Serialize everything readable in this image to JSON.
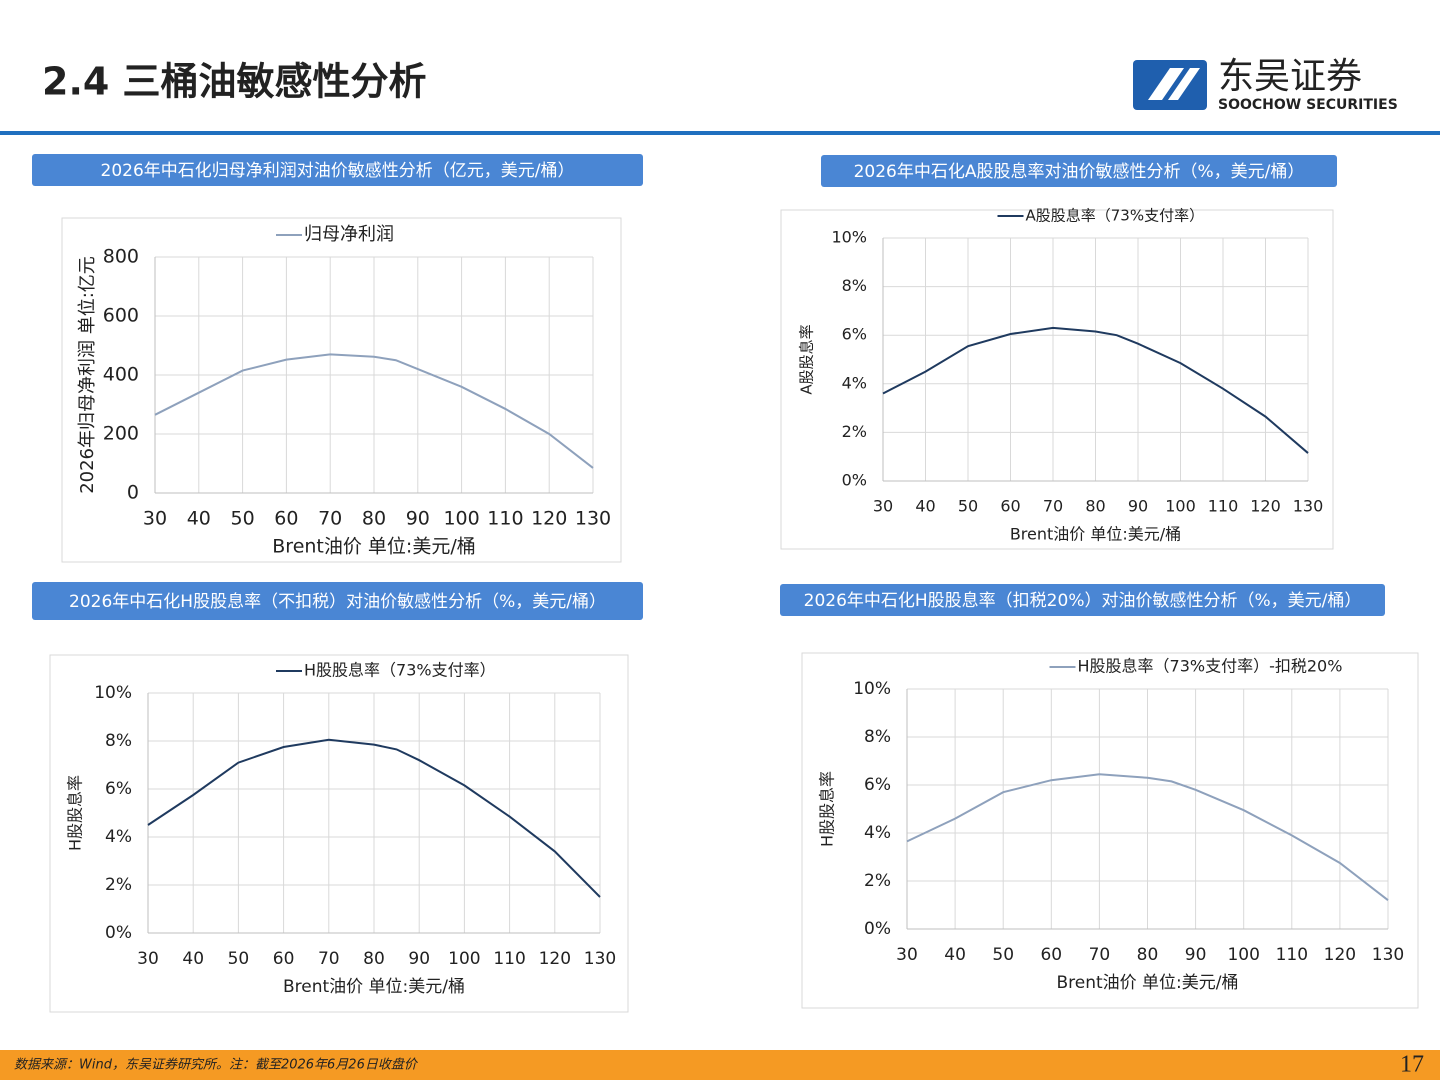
{
  "header": {
    "title": "2.4 三桶油敏感性分析",
    "logo_cn": "东吴证券",
    "logo_en": "SOOCHOW SECURITIES"
  },
  "chart_data": [
    {
      "type": "line",
      "title": "2026年中石化归母净利润对油价敏感性分析（亿元，美元/桶）",
      "x_label": "Brent油价  单位:美元/桶",
      "y_label": "2026年归母净利润  单位:亿元",
      "x": [
        30,
        40,
        50,
        60,
        70,
        80,
        85,
        90,
        100,
        110,
        120,
        130
      ],
      "series": [
        {
          "name": "归母净利润",
          "color": "#8EA1BC",
          "values": [
            265,
            340,
            415,
            452,
            470,
            462,
            450,
            420,
            360,
            285,
            200,
            85
          ]
        }
      ],
      "xlim": [
        30,
        130
      ],
      "xticks": [
        30,
        40,
        50,
        60,
        70,
        80,
        90,
        100,
        110,
        120,
        130
      ],
      "ylim": [
        0,
        800
      ],
      "yticks": [
        0,
        200,
        400,
        600,
        800
      ],
      "grid": true
    },
    {
      "type": "line",
      "title": "2026年中石化A股股息率对油价敏感性分析（%，美元/桶）",
      "x_label": "Brent油价  单位:美元/桶",
      "y_label": "A股股息率",
      "x": [
        30,
        40,
        50,
        60,
        70,
        80,
        85,
        90,
        100,
        110,
        120,
        130
      ],
      "series": [
        {
          "name": "A股股息率（73%支付率）",
          "color": "#1F3A5F",
          "values": [
            3.6,
            4.5,
            5.55,
            6.05,
            6.3,
            6.15,
            6.0,
            5.65,
            4.85,
            3.8,
            2.65,
            1.15
          ]
        }
      ],
      "xlim": [
        30,
        130
      ],
      "xticks": [
        30,
        40,
        50,
        60,
        70,
        80,
        90,
        100,
        110,
        120,
        130
      ],
      "ylim": [
        0,
        10
      ],
      "yticks": [
        {
          "value": 0,
          "label": "0%"
        },
        {
          "value": 2,
          "label": "2%"
        },
        {
          "value": 4,
          "label": "4%"
        },
        {
          "value": 6,
          "label": "6%"
        },
        {
          "value": 8,
          "label": "8%"
        },
        {
          "value": 10,
          "label": "10%"
        }
      ],
      "grid": true
    },
    {
      "type": "line",
      "title": "2026年中石化H股股息率（不扣税）对油价敏感性分析（%，美元/桶）",
      "x_label": "Brent油价  单位:美元/桶",
      "y_label": "H股股息率",
      "x": [
        30,
        40,
        50,
        60,
        70,
        80,
        85,
        90,
        100,
        110,
        120,
        130
      ],
      "series": [
        {
          "name": "H股股息率（73%支付率）",
          "color": "#1F3A5F",
          "values": [
            4.5,
            5.75,
            7.1,
            7.75,
            8.05,
            7.85,
            7.65,
            7.2,
            6.15,
            4.85,
            3.4,
            1.5
          ]
        }
      ],
      "xlim": [
        30,
        130
      ],
      "xticks": [
        30,
        40,
        50,
        60,
        70,
        80,
        90,
        100,
        110,
        120,
        130
      ],
      "ylim": [
        0,
        10
      ],
      "yticks": [
        {
          "value": 0,
          "label": "0%"
        },
        {
          "value": 2,
          "label": "2%"
        },
        {
          "value": 4,
          "label": "4%"
        },
        {
          "value": 6,
          "label": "6%"
        },
        {
          "value": 8,
          "label": "8%"
        },
        {
          "value": 10,
          "label": "10%"
        }
      ],
      "grid": true
    },
    {
      "type": "line",
      "title": "2026年中石化H股股息率（扣税20%）对油价敏感性分析（%，美元/桶）",
      "x_label": "Brent油价  单位:美元/桶",
      "y_label": "H股股息率",
      "x": [
        30,
        40,
        50,
        60,
        70,
        80,
        85,
        90,
        100,
        110,
        120,
        130
      ],
      "series": [
        {
          "name": "H股股息率（73%支付率）-扣税20%",
          "color": "#8EA1BC",
          "values": [
            3.65,
            4.6,
            5.7,
            6.2,
            6.45,
            6.3,
            6.15,
            5.8,
            4.95,
            3.9,
            2.75,
            1.2
          ]
        }
      ],
      "xlim": [
        30,
        130
      ],
      "xticks": [
        30,
        40,
        50,
        60,
        70,
        80,
        90,
        100,
        110,
        120,
        130
      ],
      "ylim": [
        0,
        10
      ],
      "yticks": [
        {
          "value": 0,
          "label": "0%"
        },
        {
          "value": 2,
          "label": "2%"
        },
        {
          "value": 4,
          "label": "4%"
        },
        {
          "value": 6,
          "label": "6%"
        },
        {
          "value": 8,
          "label": "8%"
        },
        {
          "value": 10,
          "label": "10%"
        }
      ],
      "grid": true
    }
  ],
  "footer": {
    "note": "数据来源：Wind，东吴证券研究所。注：截至2026年6月26日收盘价",
    "page": "17"
  }
}
